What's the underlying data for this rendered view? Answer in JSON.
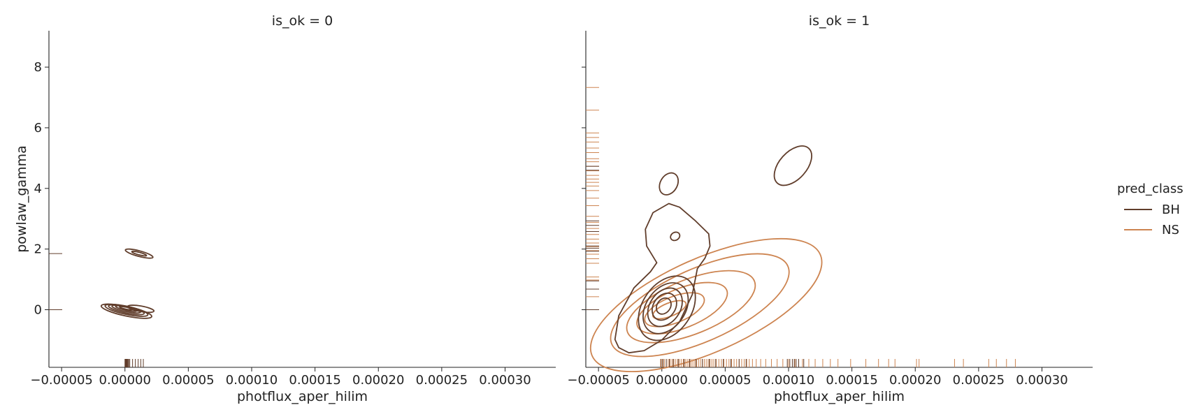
{
  "chart_data": {
    "type": "kde-contour-facet",
    "colors": {
      "BH": "#603d2b",
      "NS": "#cd8450"
    },
    "legend": {
      "title": "pred_class",
      "entries": [
        "BH",
        "NS"
      ],
      "placement": "right"
    },
    "xlabel": "photflux_aper_hilim",
    "ylabel": "powlaw_gamma",
    "xlim": [
      -6e-05,
      0.00034
    ],
    "ylim": [
      -1.9,
      9.2
    ],
    "x_ticks": [
      -5e-05,
      0.0,
      5e-05,
      0.0001,
      0.00015,
      0.0002,
      0.00025,
      0.0003
    ],
    "x_tick_labels": [
      "−0.00005",
      "0.00000",
      "0.00005",
      "0.00010",
      "0.00015",
      "0.00020",
      "0.00025",
      "0.00030"
    ],
    "y_ticks": [
      0,
      2,
      4,
      6,
      8
    ],
    "y_tick_labels": [
      "0",
      "2",
      "4",
      "6",
      "8"
    ],
    "grid": false,
    "panels": [
      {
        "title": "is_ok = 0",
        "series": [
          {
            "name": "BH",
            "contours": [
              {
                "cx": 1.2e-06,
                "cy": -0.05,
                "rx": 3.8e-06,
                "ry": 0.85,
                "tilt": -78
              },
              {
                "cx": 1.2e-06,
                "cy": -0.02,
                "rx": 3.2e-06,
                "ry": 0.72,
                "tilt": -78
              },
              {
                "cx": 1.1e-06,
                "cy": 0.0,
                "rx": 2.6e-06,
                "ry": 0.6,
                "tilt": -78
              },
              {
                "cx": 1e-06,
                "cy": 0.02,
                "rx": 2e-06,
                "ry": 0.48,
                "tilt": -78
              },
              {
                "cx": 1e-06,
                "cy": 0.04,
                "rx": 1.4e-06,
                "ry": 0.36,
                "tilt": -78
              },
              {
                "cx": 9e-07,
                "cy": 0.05,
                "rx": 8e-07,
                "ry": 0.22,
                "tilt": -78
              },
              {
                "cx": 1.12e-05,
                "cy": 1.85,
                "rx": 2.2e-06,
                "ry": 0.47,
                "tilt": -75
              },
              {
                "cx": 1.12e-05,
                "cy": 1.85,
                "rx": 1e-06,
                "ry": 0.25,
                "tilt": -75
              },
              {
                "cx": 1.25e-05,
                "cy": 0.03,
                "rx": 2.2e-06,
                "ry": 0.44,
                "tilt": -80
              }
            ],
            "x_rug": [
              0.0,
              2e-07,
              4e-07,
              6e-07,
              8e-07,
              1e-06,
              1.3e-06,
              1.6e-06,
              2e-06,
              2.5e-06,
              3e-06,
              3.8e-06,
              6e-06,
              8.2e-06,
              1.04e-05,
              1.25e-05,
              1.45e-05
            ],
            "y_rug": [
              0.0,
              0.0,
              0.0,
              0.0,
              0.0,
              1.85
            ]
          }
        ]
      },
      {
        "title": "is_ok = 1",
        "series": [
          {
            "name": "NS",
            "contours": [
              {
                "cx": 3.5e-05,
                "cy": 0.15,
                "rx": 9.85e-05,
                "ry": 1.55,
                "tilt": -24
              },
              {
                "cx": 3e-05,
                "cy": 0.15,
                "rx": 7.6e-05,
                "ry": 1.2,
                "tilt": -24
              },
              {
                "cx": 2.3e-05,
                "cy": 0.1,
                "rx": 5.4e-05,
                "ry": 0.9,
                "tilt": -22
              },
              {
                "cx": 1.6e-05,
                "cy": 0.05,
                "rx": 3.8e-05,
                "ry": 0.65,
                "tilt": -22
              },
              {
                "cx": 1e-05,
                "cy": 0.0,
                "rx": 2.5e-05,
                "ry": 0.43,
                "tilt": -22
              },
              {
                "cx": 6e-06,
                "cy": 0.0,
                "rx": 1.4e-05,
                "ry": 0.22,
                "tilt": -22
              }
            ],
            "x_rug": [
              -1e-06,
              5e-07,
              2e-06,
              3.5e-06,
              5e-06,
              6.5e-06,
              8e-06,
              9.5e-06,
              1.1e-05,
              1.25e-05,
              1.4e-05,
              1.55e-05,
              1.7e-05,
              1.85e-05,
              2e-05,
              2.15e-05,
              2.3e-05,
              2.45e-05,
              2.6e-05,
              2.75e-05,
              2.9e-05,
              3.05e-05,
              3.2e-05,
              3.35e-05,
              3.5e-05,
              3.65e-05,
              3.8e-05,
              3.95e-05,
              4.1e-05,
              4.3e-05,
              4.5e-05,
              4.7e-05,
              4.9e-05,
              5.1e-05,
              5.3e-05,
              5.5e-05,
              5.7e-05,
              5.9e-05,
              6.1e-05,
              6.3e-05,
              6.5e-05,
              6.7e-05,
              6.9e-05,
              7.15e-05,
              7.45e-05,
              7.8e-05,
              8.2e-05,
              8.65e-05,
              9.1e-05,
              9.55e-05,
              0.0001,
              0.000105,
              0.000111,
              0.000116,
              0.000121,
              0.000127,
              0.000133,
              0.000139,
              0.000149,
              0.000161,
              0.000171,
              0.000179,
              0.000184,
              0.000201,
              0.000203,
              0.000231,
              0.000238,
              0.000258,
              0.000264,
              0.000272,
              0.000279
            ],
            "y_rug": [
              7.33,
              6.58,
              5.83,
              5.68,
              5.53,
              5.33,
              5.18,
              4.98,
              4.88,
              4.73,
              4.58,
              4.43,
              4.31,
              4.2,
              4.08,
              3.93,
              3.68,
              3.43,
              3.08,
              2.88,
              2.68,
              2.48,
              2.33,
              2.2,
              2.08,
              1.95,
              1.83,
              1.68,
              1.53,
              1.08,
              0.98,
              0.68,
              0.43,
              0.0,
              0.0
            ]
          },
          {
            "name": "BH",
            "contours": [
              {
                "cx": 0.0001035,
                "cy": 4.75,
                "rx": 1.85e-05,
                "ry": 0.45,
                "tilt": -48
              },
              {
                "cx": 5.5e-06,
                "cy": 4.15,
                "rx": 9.2e-06,
                "ry": 0.28,
                "tilt": -60
              },
              {
                "cx": 1.05e-05,
                "cy": 2.42,
                "rx": 3.8e-06,
                "ry": 0.13,
                "tilt": -30
              },
              {
                "cx": 4e-06,
                "cy": 0.05,
                "rx": 2.8e-05,
                "ry": 0.8,
                "tilt": -55
              },
              {
                "cx": 3e-06,
                "cy": 0.05,
                "rx": 2.2e-05,
                "ry": 0.64,
                "tilt": -55
              },
              {
                "cx": 2.5e-06,
                "cy": 0.08,
                "rx": 1.65e-05,
                "ry": 0.5,
                "tilt": -55
              },
              {
                "cx": 2e-06,
                "cy": 0.1,
                "rx": 1.15e-05,
                "ry": 0.36,
                "tilt": -55
              },
              {
                "cx": 1.5e-06,
                "cy": 0.12,
                "rx": 6.8e-06,
                "ry": 0.22,
                "tilt": -55
              }
            ],
            "outer_contour": [
              [
                -3.7e-05,
                -0.98
              ],
              [
                -3.4e-05,
                -1.25
              ],
              [
                -2.6e-05,
                -1.42
              ],
              [
                -1.4e-05,
                -1.35
              ],
              [
                0.0,
                -1.0
              ],
              [
                1.4e-05,
                -0.4
              ],
              [
                2.4e-05,
                0.5
              ],
              [
                2.8e-05,
                1.35
              ],
              [
                3.4e-05,
                1.7
              ],
              [
                3.8e-05,
                2.1
              ],
              [
                3.7e-05,
                2.5
              ],
              [
                2.6e-05,
                2.95
              ],
              [
                1.4e-05,
                3.38
              ],
              [
                5.5e-06,
                3.5
              ],
              [
                -7e-06,
                3.2
              ],
              [
                -1.3e-05,
                2.65
              ],
              [
                -1.2e-05,
                2.1
              ],
              [
                -4e-06,
                1.55
              ],
              [
                -9e-06,
                1.25
              ],
              [
                -2.2e-05,
                0.72
              ],
              [
                -3.4e-05,
                -0.2
              ],
              [
                -3.7e-05,
                -0.98
              ]
            ],
            "x_rug": [
              -5e-07,
              1e-06,
              3.5e-06,
              6e-06,
              9e-06,
              1.3e-05,
              1.75e-05,
              2.2e-05,
              2.7e-05,
              3.2e-05,
              3.75e-05,
              4.25e-05,
              4.85e-05,
              5.45e-05,
              6.1e-05,
              6.65e-05,
              9.9e-05,
              0.000101,
              0.000103,
              0.0001045,
              0.000106,
              0.000108,
              0.000112
            ],
            "y_rug": [
              4.73,
              4.6,
              2.93,
              2.78,
              2.58,
              2.1,
              2.03,
              1.93,
              0.95,
              0.68,
              0.0,
              0.0
            ]
          }
        ]
      }
    ]
  }
}
